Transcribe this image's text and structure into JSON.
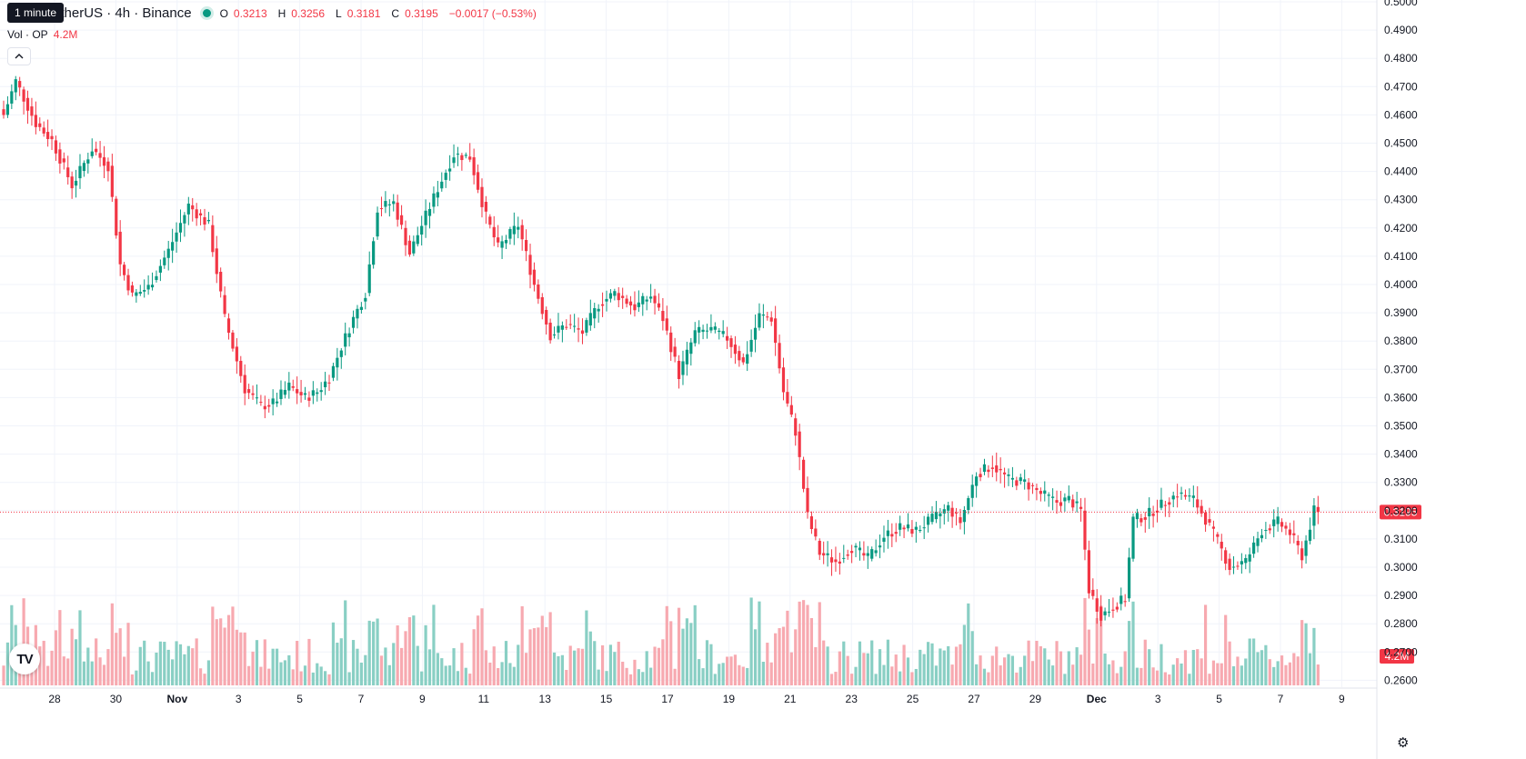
{
  "header": {
    "symbol_text": "etherUS · 4h · Binance",
    "tooltip": "1 minute",
    "o_label": "O",
    "o_value": "0.3213",
    "h_label": "H",
    "h_value": "0.3256",
    "l_label": "L",
    "l_value": "0.3181",
    "c_label": "C",
    "c_value": "0.3195",
    "change": "−0.0017 (−0.53%)",
    "vol_label": "Vol · OP",
    "vol_value": "4.2M",
    "collapse_icon": "chevron-up-icon",
    "logo_text": "TV"
  },
  "colors": {
    "up": "#089981",
    "down": "#f23645",
    "vol_up": "#89cfc4",
    "vol_down": "#f7a9b0",
    "grid": "#f0f3fa",
    "axis_text": "#131722"
  },
  "chart_data": {
    "type": "candlestick",
    "interval": "4h",
    "y_axis": {
      "side": "right",
      "ticks": [
        "0.2600",
        "0.2700",
        "0.2800",
        "0.2900",
        "0.3000",
        "0.3100",
        "0.3200",
        "0.3300",
        "0.3400",
        "0.3500",
        "0.3600",
        "0.3700",
        "0.3800",
        "0.3900",
        "0.4000",
        "0.4100",
        "0.4200",
        "0.4300",
        "0.4400",
        "0.4500",
        "0.4600",
        "0.4700",
        "0.4800",
        "0.4900",
        "0.5000"
      ],
      "range": [
        0.2587,
        0.5003
      ]
    },
    "x_axis": {
      "ticks": [
        {
          "label": "28",
          "day": 0
        },
        {
          "label": "30",
          "day": 2
        },
        {
          "label": "Nov",
          "day": 4,
          "bold": true
        },
        {
          "label": "3",
          "day": 6
        },
        {
          "label": "5",
          "day": 8
        },
        {
          "label": "7",
          "day": 10
        },
        {
          "label": "9",
          "day": 12
        },
        {
          "label": "11",
          "day": 14
        },
        {
          "label": "13",
          "day": 16
        },
        {
          "label": "15",
          "day": 18
        },
        {
          "label": "17",
          "day": 20
        },
        {
          "label": "19",
          "day": 22
        },
        {
          "label": "21",
          "day": 24
        },
        {
          "label": "23",
          "day": 26
        },
        {
          "label": "25",
          "day": 28
        },
        {
          "label": "27",
          "day": 30
        },
        {
          "label": "29",
          "day": 32
        },
        {
          "label": "Dec",
          "day": 34,
          "bold": true
        },
        {
          "label": "3",
          "day": 36
        },
        {
          "label": "5",
          "day": 38
        },
        {
          "label": "7",
          "day": 40
        },
        {
          "label": "9",
          "day": 42
        }
      ]
    },
    "last_price": "0.3195",
    "last_volume_label": "4.2M",
    "anchors": [
      [
        0,
        0.46
      ],
      [
        3,
        0.472
      ],
      [
        8,
        0.457
      ],
      [
        12,
        0.451
      ],
      [
        17,
        0.435
      ],
      [
        22,
        0.448
      ],
      [
        26,
        0.442
      ],
      [
        29,
        0.407
      ],
      [
        32,
        0.396
      ],
      [
        36,
        0.399
      ],
      [
        41,
        0.412
      ],
      [
        46,
        0.428
      ],
      [
        51,
        0.421
      ],
      [
        55,
        0.388
      ],
      [
        60,
        0.363
      ],
      [
        64,
        0.357
      ],
      [
        67,
        0.358
      ],
      [
        71,
        0.364
      ],
      [
        75,
        0.36
      ],
      [
        78,
        0.362
      ],
      [
        81,
        0.367
      ],
      [
        84,
        0.378
      ],
      [
        87,
        0.388
      ],
      [
        90,
        0.397
      ],
      [
        93,
        0.427
      ],
      [
        97,
        0.429
      ],
      [
        101,
        0.411
      ],
      [
        104,
        0.421
      ],
      [
        108,
        0.434
      ],
      [
        112,
        0.446
      ],
      [
        116,
        0.445
      ],
      [
        120,
        0.424
      ],
      [
        123,
        0.413
      ],
      [
        128,
        0.421
      ],
      [
        132,
        0.4
      ],
      [
        136,
        0.382
      ],
      [
        140,
        0.386
      ],
      [
        144,
        0.383
      ],
      [
        148,
        0.393
      ],
      [
        152,
        0.397
      ],
      [
        157,
        0.392
      ],
      [
        161,
        0.396
      ],
      [
        164,
        0.388
      ],
      [
        168,
        0.368
      ],
      [
        172,
        0.383
      ],
      [
        176,
        0.384
      ],
      [
        180,
        0.381
      ],
      [
        184,
        0.372
      ],
      [
        188,
        0.389
      ],
      [
        191,
        0.388
      ],
      [
        194,
        0.362
      ],
      [
        197,
        0.348
      ],
      [
        200,
        0.318
      ],
      [
        203,
        0.305
      ],
      [
        207,
        0.302
      ],
      [
        211,
        0.307
      ],
      [
        215,
        0.303
      ],
      [
        219,
        0.311
      ],
      [
        223,
        0.314
      ],
      [
        227,
        0.313
      ],
      [
        231,
        0.317
      ],
      [
        235,
        0.321
      ],
      [
        238,
        0.316
      ],
      [
        242,
        0.333
      ],
      [
        246,
        0.336
      ],
      [
        250,
        0.331
      ],
      [
        254,
        0.33
      ],
      [
        258,
        0.326
      ],
      [
        262,
        0.323
      ],
      [
        265,
        0.324
      ],
      [
        268,
        0.32
      ],
      [
        270,
        0.292
      ],
      [
        273,
        0.283
      ],
      [
        276,
        0.286
      ],
      [
        279,
        0.289
      ],
      [
        281,
        0.317
      ],
      [
        284,
        0.318
      ],
      [
        288,
        0.322
      ],
      [
        292,
        0.326
      ],
      [
        296,
        0.324
      ],
      [
        299,
        0.317
      ],
      [
        302,
        0.309
      ],
      [
        305,
        0.3
      ],
      [
        309,
        0.302
      ],
      [
        313,
        0.313
      ],
      [
        317,
        0.316
      ],
      [
        320,
        0.312
      ],
      [
        323,
        0.304
      ],
      [
        326,
        0.32
      ],
      [
        327,
        0.3195
      ]
    ]
  }
}
